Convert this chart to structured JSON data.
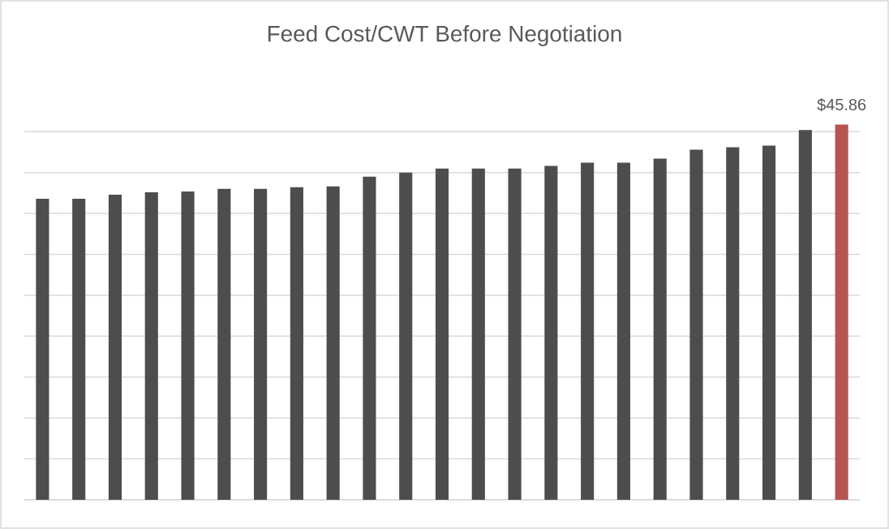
{
  "chart_data": {
    "type": "bar",
    "title": "Feed Cost/CWT Before Negotiation",
    "categories": [
      null,
      null,
      null,
      null,
      null,
      null,
      null,
      null,
      null,
      null,
      null,
      null,
      null,
      null,
      null,
      null,
      null,
      null,
      null,
      null,
      null,
      null,
      null
    ],
    "values": [
      36.8,
      36.8,
      37.3,
      37.6,
      37.7,
      38.0,
      38.0,
      38.2,
      38.3,
      39.5,
      40.0,
      40.5,
      40.5,
      40.5,
      40.8,
      41.2,
      41.2,
      41.7,
      42.8,
      43.1,
      43.3,
      45.2,
      45.86
    ],
    "colors": [
      "#4d4d4d",
      "#4d4d4d",
      "#4d4d4d",
      "#4d4d4d",
      "#4d4d4d",
      "#4d4d4d",
      "#4d4d4d",
      "#4d4d4d",
      "#4d4d4d",
      "#4d4d4d",
      "#4d4d4d",
      "#4d4d4d",
      "#4d4d4d",
      "#4d4d4d",
      "#4d4d4d",
      "#4d4d4d",
      "#4d4d4d",
      "#4d4d4d",
      "#4d4d4d",
      "#4d4d4d",
      "#4d4d4d",
      "#4d4d4d",
      "#b85450"
    ],
    "value_labels": [
      null,
      null,
      null,
      null,
      null,
      null,
      null,
      null,
      null,
      null,
      null,
      null,
      null,
      null,
      null,
      null,
      null,
      null,
      null,
      null,
      null,
      null,
      "$45.86"
    ],
    "grid": true,
    "tick_labels": false
  }
}
